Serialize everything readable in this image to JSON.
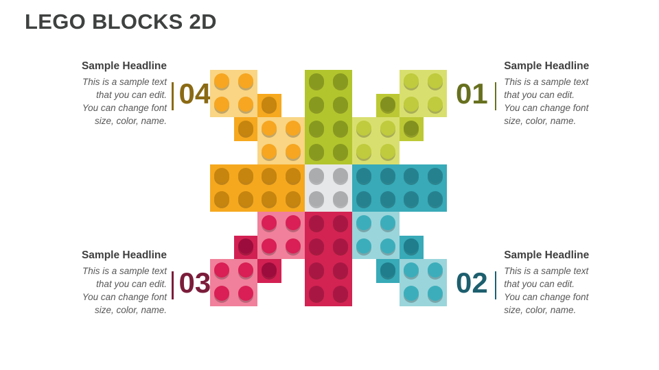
{
  "slide": {
    "title": "LEGO BLOCKS 2D",
    "title_color": "#3E4140",
    "background_color": "#FFFFFF"
  },
  "callouts": [
    {
      "number": "01",
      "accent_color": "#67701E",
      "headline": "Sample Headline",
      "body": "This is a sample text\nthat you can edit.\nYou can change font\nsize, color, name."
    },
    {
      "number": "02",
      "accent_color": "#1D5F6E",
      "headline": "Sample Headline",
      "body": "This is a sample text\nthat you can edit.\nYou can change font\nsize, color, name."
    },
    {
      "number": "03",
      "accent_color": "#7B1D3B",
      "headline": "Sample Headline",
      "body": "This is a sample text\nthat you can edit.\nYou can change font\nsize, color, name."
    },
    {
      "number": "04",
      "accent_color": "#8A6A14",
      "headline": "Sample Headline",
      "body": "This is a sample text\nthat you can edit.\nYou can change font\nsize, color, name."
    }
  ],
  "lego": {
    "grid": {
      "rows": 10,
      "cols": 10
    },
    "blocks": [
      {
        "quadrant": "top-left",
        "row": 1,
        "col": 1,
        "rows": 2,
        "cols": 2,
        "body": "#F9D584",
        "stud": "#F6A621"
      },
      {
        "quadrant": "top-left",
        "row": 2,
        "col": 3,
        "rows": 1,
        "cols": 1,
        "body": "#F6A81E",
        "stud": "#C5850F"
      },
      {
        "quadrant": "top-left",
        "row": 3,
        "col": 2,
        "rows": 1,
        "cols": 1,
        "body": "#F6A81E",
        "stud": "#C5850F"
      },
      {
        "quadrant": "top-left",
        "row": 3,
        "col": 3,
        "rows": 2,
        "cols": 2,
        "body": "#F9D584",
        "stud": "#F6A621"
      },
      {
        "quadrant": "middle-left",
        "row": 5,
        "col": 1,
        "rows": 2,
        "cols": 4,
        "body": "#F5A81E",
        "stud": "#C5850F"
      },
      {
        "quadrant": "top-center",
        "row": 1,
        "col": 5,
        "rows": 4,
        "cols": 2,
        "body": "#B2C52D",
        "stud": "#87991F"
      },
      {
        "quadrant": "top-right",
        "row": 2,
        "col": 8,
        "rows": 1,
        "cols": 1,
        "body": "#BCC935",
        "stud": "#82901F"
      },
      {
        "quadrant": "top-right",
        "row": 1,
        "col": 9,
        "rows": 2,
        "cols": 2,
        "body": "#D9DF6F",
        "stud": "#C0CB3D"
      },
      {
        "quadrant": "top-right",
        "row": 3,
        "col": 7,
        "rows": 2,
        "cols": 2,
        "body": "#D9DF6F",
        "stud": "#C0CB3D"
      },
      {
        "quadrant": "top-right",
        "row": 3,
        "col": 9,
        "rows": 1,
        "cols": 1,
        "body": "#BCC935",
        "stud": "#82901F"
      },
      {
        "quadrant": "center",
        "row": 5,
        "col": 5,
        "rows": 2,
        "cols": 2,
        "body": "#E6E7E8",
        "stud": "#ABACAE"
      },
      {
        "quadrant": "middle-right",
        "row": 5,
        "col": 7,
        "rows": 2,
        "cols": 4,
        "body": "#38AAB8",
        "stud": "#26818F"
      },
      {
        "quadrant": "bottom-left",
        "row": 7,
        "col": 3,
        "rows": 2,
        "cols": 2,
        "body": "#F0809B",
        "stud": "#D91F55"
      },
      {
        "quadrant": "bottom-left",
        "row": 8,
        "col": 2,
        "rows": 1,
        "cols": 1,
        "body": "#D22053",
        "stud": "#9C0C3C"
      },
      {
        "quadrant": "bottom-center",
        "row": 7,
        "col": 5,
        "rows": 4,
        "cols": 2,
        "body": "#D22353",
        "stud": "#A81743"
      },
      {
        "quadrant": "bottom-left",
        "row": 9,
        "col": 1,
        "rows": 2,
        "cols": 2,
        "body": "#F0809B",
        "stud": "#D91F55"
      },
      {
        "quadrant": "bottom-left",
        "row": 9,
        "col": 3,
        "rows": 1,
        "cols": 1,
        "body": "#D22053",
        "stud": "#9C0C3C"
      },
      {
        "quadrant": "bottom-right",
        "row": 7,
        "col": 7,
        "rows": 2,
        "cols": 2,
        "body": "#9AD5DB",
        "stud": "#3CAEBB"
      },
      {
        "quadrant": "bottom-right",
        "row": 8,
        "col": 9,
        "rows": 1,
        "cols": 1,
        "body": "#38AAB8",
        "stud": "#1F7D8C"
      },
      {
        "quadrant": "bottom-right",
        "row": 9,
        "col": 8,
        "rows": 1,
        "cols": 1,
        "body": "#38AAB8",
        "stud": "#1F7D8C"
      },
      {
        "quadrant": "bottom-right",
        "row": 9,
        "col": 9,
        "rows": 2,
        "cols": 2,
        "body": "#9AD5DB",
        "stud": "#3CAEBB"
      }
    ]
  }
}
